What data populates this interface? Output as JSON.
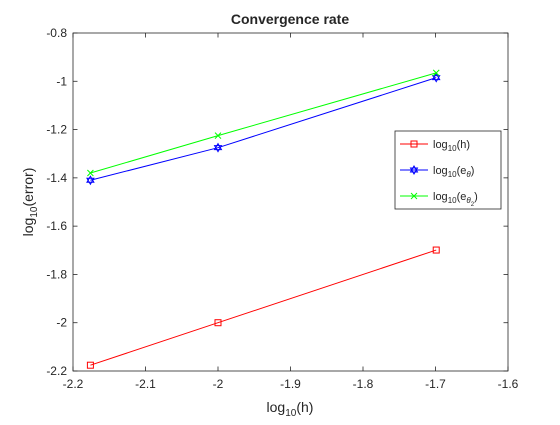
{
  "chart_data": {
    "type": "line",
    "title": "Convergence rate",
    "xlabel": {
      "base": "log",
      "sub": "10",
      "arg": "(h)"
    },
    "ylabel": {
      "base": "log",
      "sub": "10",
      "arg": "(error)"
    },
    "xlim": [
      -2.2,
      -1.6
    ],
    "ylim": [
      -2.2,
      -0.8
    ],
    "xticks": [
      -2.2,
      -2.1,
      -2.0,
      -1.9,
      -1.8,
      -1.7,
      -1.6
    ],
    "xtick_labels": [
      "-2.2",
      "-2.1",
      "-2",
      "-1.9",
      "-1.8",
      "-1.7",
      "-1.6"
    ],
    "yticks": [
      -2.2,
      -2.0,
      -1.8,
      -1.6,
      -1.4,
      -1.2,
      -1.0,
      -0.8
    ],
    "ytick_labels": [
      "-2.2",
      "-2",
      "-1.8",
      "-1.6",
      "-1.4",
      "-1.2",
      "-1",
      "-0.8"
    ],
    "grid": false,
    "legend_position": "right",
    "series": [
      {
        "legend": {
          "base": "log",
          "sub": "10",
          "arg": "(h)",
          "subsub": ""
        },
        "color": "#ff0000",
        "marker": "square",
        "x": [
          -2.176,
          -2.0,
          -1.699
        ],
        "y": [
          -2.176,
          -2.0,
          -1.699
        ]
      },
      {
        "legend": {
          "base": "log",
          "sub": "10",
          "arg": "(e",
          "argsub": "θ",
          "argsubsub": "",
          "close": ")"
        },
        "color": "#0000ff",
        "marker": "hexagram",
        "x": [
          -2.176,
          -2.0,
          -1.699
        ],
        "y": [
          -1.41,
          -1.275,
          -0.985
        ]
      },
      {
        "legend": {
          "base": "log",
          "sub": "10",
          "arg": "(e",
          "argsub": "θ",
          "argsubsub": "2",
          "close": ")"
        },
        "color": "#00ff00",
        "marker": "x",
        "x": [
          -2.176,
          -2.0,
          -1.699
        ],
        "y": [
          -1.38,
          -1.225,
          -0.965
        ]
      }
    ]
  }
}
